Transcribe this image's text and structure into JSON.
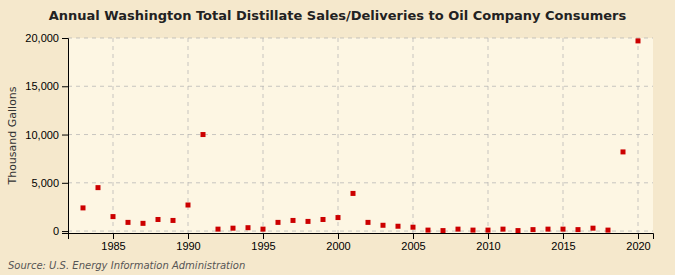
{
  "chart_data": {
    "type": "scatter",
    "title": "Annual Washington Total Distillate Sales/Deliveries to Oil Company Consumers",
    "ylabel": "Thousand Gallons",
    "annotations": [
      "Source: U.S. Energy Information Administration"
    ],
    "x": [
      1983,
      1984,
      1985,
      1986,
      1987,
      1988,
      1989,
      1990,
      1991,
      1992,
      1993,
      1994,
      1995,
      1996,
      1997,
      1998,
      1999,
      2000,
      2001,
      2002,
      2003,
      2004,
      2005,
      2006,
      2007,
      2008,
      2009,
      2010,
      2011,
      2012,
      2013,
      2014,
      2015,
      2016,
      2017,
      2018,
      2019,
      2020
    ],
    "values": [
      2400,
      4500,
      1500,
      900,
      800,
      1200,
      1100,
      2700,
      10000,
      200,
      300,
      350,
      200,
      900,
      1100,
      1000,
      1200,
      1400,
      3900,
      900,
      600,
      500,
      400,
      100,
      50,
      200,
      100,
      100,
      200,
      50,
      150,
      200,
      200,
      150,
      300,
      100,
      8200,
      19700
    ],
    "color": "#cc0000",
    "marker": "square",
    "xlim": [
      1982,
      2021
    ],
    "ylim": [
      -200,
      20000
    ],
    "xticks": [
      1985,
      1990,
      1995,
      2000,
      2005,
      2010,
      2015,
      2020
    ],
    "yticks": [
      0,
      {
        "value": 5000,
        "label": "5,000"
      },
      {
        "value": 10000,
        "label": "10,000"
      },
      {
        "value": 15000,
        "label": "15,000"
      },
      {
        "value": 20000,
        "label": "20,000"
      }
    ],
    "grid": true
  }
}
